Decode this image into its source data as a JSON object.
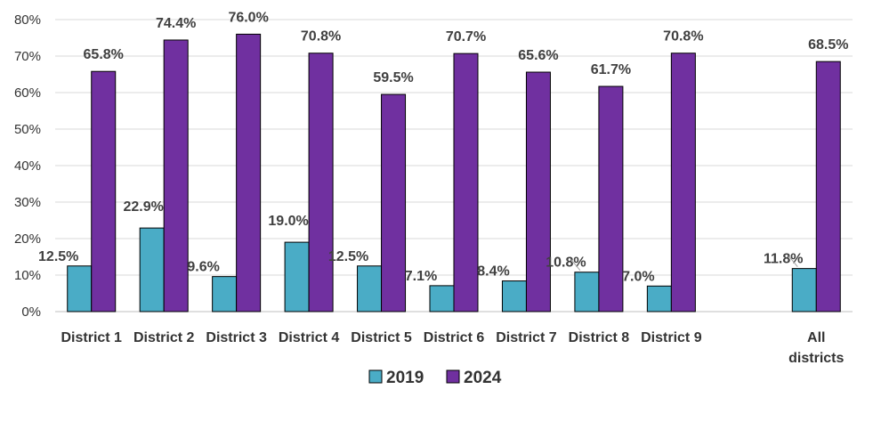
{
  "chart_data": {
    "type": "bar",
    "title": "",
    "xlabel": "",
    "ylabel": "",
    "ylim": [
      0,
      80
    ],
    "y_ticks": [
      "0%",
      "10%",
      "20%",
      "30%",
      "40%",
      "50%",
      "60%",
      "70%",
      "80%"
    ],
    "grid": true,
    "legend_position": "bottom",
    "categories": [
      {
        "label": "District 1"
      },
      {
        "label": "District 2"
      },
      {
        "label": "District 3"
      },
      {
        "label": "District 4"
      },
      {
        "label": "District 5"
      },
      {
        "label": "District 6"
      },
      {
        "label": "District 7"
      },
      {
        "label": "District 8"
      },
      {
        "label": "District 9"
      },
      {
        "label": ""
      },
      {
        "label": "All districts",
        "lines": [
          "All",
          "districts"
        ]
      }
    ],
    "series": [
      {
        "name": "2019",
        "color": "#4AACC6",
        "values": [
          12.5,
          22.9,
          9.6,
          19.0,
          12.5,
          7.1,
          8.4,
          10.8,
          7.0,
          null,
          11.8
        ],
        "labels": [
          "12.5%",
          "22.9%",
          "9.6%",
          "19.0%",
          "12.5%",
          "7.1%",
          "8.4%",
          "10.8%",
          "7.0%",
          null,
          "11.8%"
        ]
      },
      {
        "name": "2024",
        "color": "#7030A0",
        "values": [
          65.8,
          74.4,
          76.0,
          70.8,
          59.5,
          70.7,
          65.6,
          61.7,
          70.8,
          null,
          68.5
        ],
        "labels": [
          "65.8%",
          "74.4%",
          "76.0%",
          "70.8%",
          "59.5%",
          "70.7%",
          "65.6%",
          "61.7%",
          "70.8%",
          null,
          "68.5%"
        ]
      }
    ]
  }
}
